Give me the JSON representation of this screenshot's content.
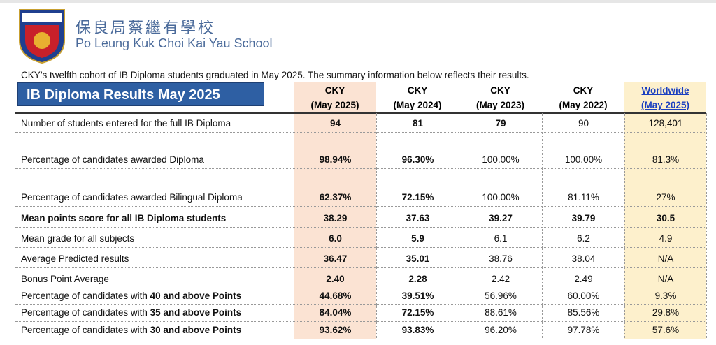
{
  "header": {
    "school_chinese": "保良局蔡繼有學校",
    "school_english": "Po Leung Kuk Choi Kai Yau School"
  },
  "intro": "CKY’s twelfth cohort of IB Diploma students graduated in May 2025. The summary information below reflects their results.",
  "table": {
    "title": "IB Diploma Results May 2025",
    "columns": [
      {
        "name": "CKY",
        "date": "(May 2025)"
      },
      {
        "name": "CKY",
        "date": "(May 2024)"
      },
      {
        "name": "CKY",
        "date": "(May 2023)"
      },
      {
        "name": "CKY",
        "date": "(May 2022)"
      },
      {
        "name": "Worldwide",
        "date": "(May 2025)"
      }
    ],
    "rows": [
      {
        "label": [
          "Number of students entered for the full IB Diploma"
        ],
        "values": [
          "94",
          "81",
          "79",
          "90",
          "128,401"
        ]
      },
      {
        "label": [
          "Percentage of candidates awarded Diploma"
        ],
        "values": [
          "98.94%",
          "96.30%",
          "100.00%",
          "100.00%",
          "81.3%"
        ]
      },
      {
        "label": [
          "Percentage of candidates awarded Bilingual Diploma"
        ],
        "values": [
          "62.37%",
          "72.15%",
          "100.00%",
          "81.11%",
          "27%"
        ]
      },
      {
        "label": [
          "Mean points score for all IB Diploma students"
        ],
        "values": [
          "38.29",
          "37.63",
          "39.27",
          "39.79",
          "30.5"
        ]
      },
      {
        "label": [
          "Mean grade for all subjects"
        ],
        "values": [
          "6.0",
          "5.9",
          "6.1",
          "6.2",
          "4.9"
        ]
      },
      {
        "label": [
          "Average Predicted results"
        ],
        "values": [
          "36.47",
          "35.01",
          "38.76",
          "38.04",
          "N/A"
        ]
      },
      {
        "label": [
          "Bonus Point Average"
        ],
        "values": [
          "2.40",
          "2.28",
          "2.42",
          "2.49",
          "N/A"
        ]
      },
      {
        "label": [
          "Percentage of candidates with ",
          "40 and above Points"
        ],
        "values": [
          "44.68%",
          "39.51%",
          "56.96%",
          "60.00%",
          "9.3%"
        ]
      },
      {
        "label": [
          "Percentage of candidates with ",
          "35 and above Points"
        ],
        "values": [
          "84.04%",
          "72.15%",
          "88.61%",
          "85.56%",
          "29.8%"
        ]
      },
      {
        "label": [
          "Percentage of candidates with ",
          "30 and above Points"
        ],
        "values": [
          "93.62%",
          "93.83%",
          "96.20%",
          "97.78%",
          "57.6%"
        ]
      }
    ]
  }
}
